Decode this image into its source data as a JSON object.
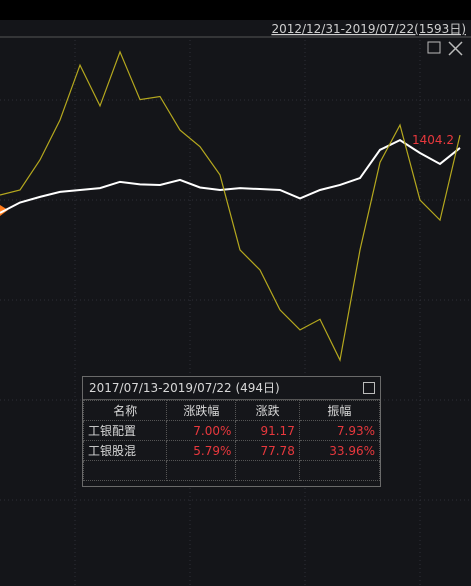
{
  "chart_data": {
    "type": "line",
    "categories": [
      null,
      null,
      null,
      null,
      null,
      null,
      null,
      null,
      null,
      null,
      null,
      null,
      null,
      null,
      null,
      null,
      null,
      null,
      null,
      null,
      null,
      null,
      null,
      null
    ],
    "series": [
      {
        "name": "white-line",
        "color": "#ffffff",
        "values": [
          1189,
          1222,
          1240,
          1256,
          1262,
          1268,
          1288,
          1280,
          1278,
          1294,
          1270,
          1262,
          1268,
          1265,
          1262,
          1235,
          1262,
          1278,
          1300,
          1390,
          1421,
          1380,
          1345,
          1396
        ]
      },
      {
        "name": "yellow-line",
        "color": "#b5a81e",
        "values": [
          1246,
          1262,
          1358,
          1485,
          1660,
          1530,
          1702,
          1550,
          1560,
          1453,
          1400,
          1310,
          1071,
          1007,
          880,
          816,
          850,
          720,
          1071,
          1350,
          1469,
          1230,
          1166,
          1437
        ]
      }
    ],
    "ylim": [
      0,
      1740
    ],
    "annotation": "1404.2"
  },
  "header": {
    "range": "2012/12/31-2019/07/22(1593日)"
  },
  "popup": {
    "title": "2017/07/13-2019/07/22 (494日)",
    "columns": [
      "名称",
      "涨跌幅",
      "涨跌",
      "振幅"
    ],
    "rows": [
      [
        "工银配置",
        "7.00%",
        "91.17",
        "7.93%"
      ],
      [
        "工银股混",
        "5.79%",
        "77.78",
        "33.96%"
      ]
    ]
  }
}
